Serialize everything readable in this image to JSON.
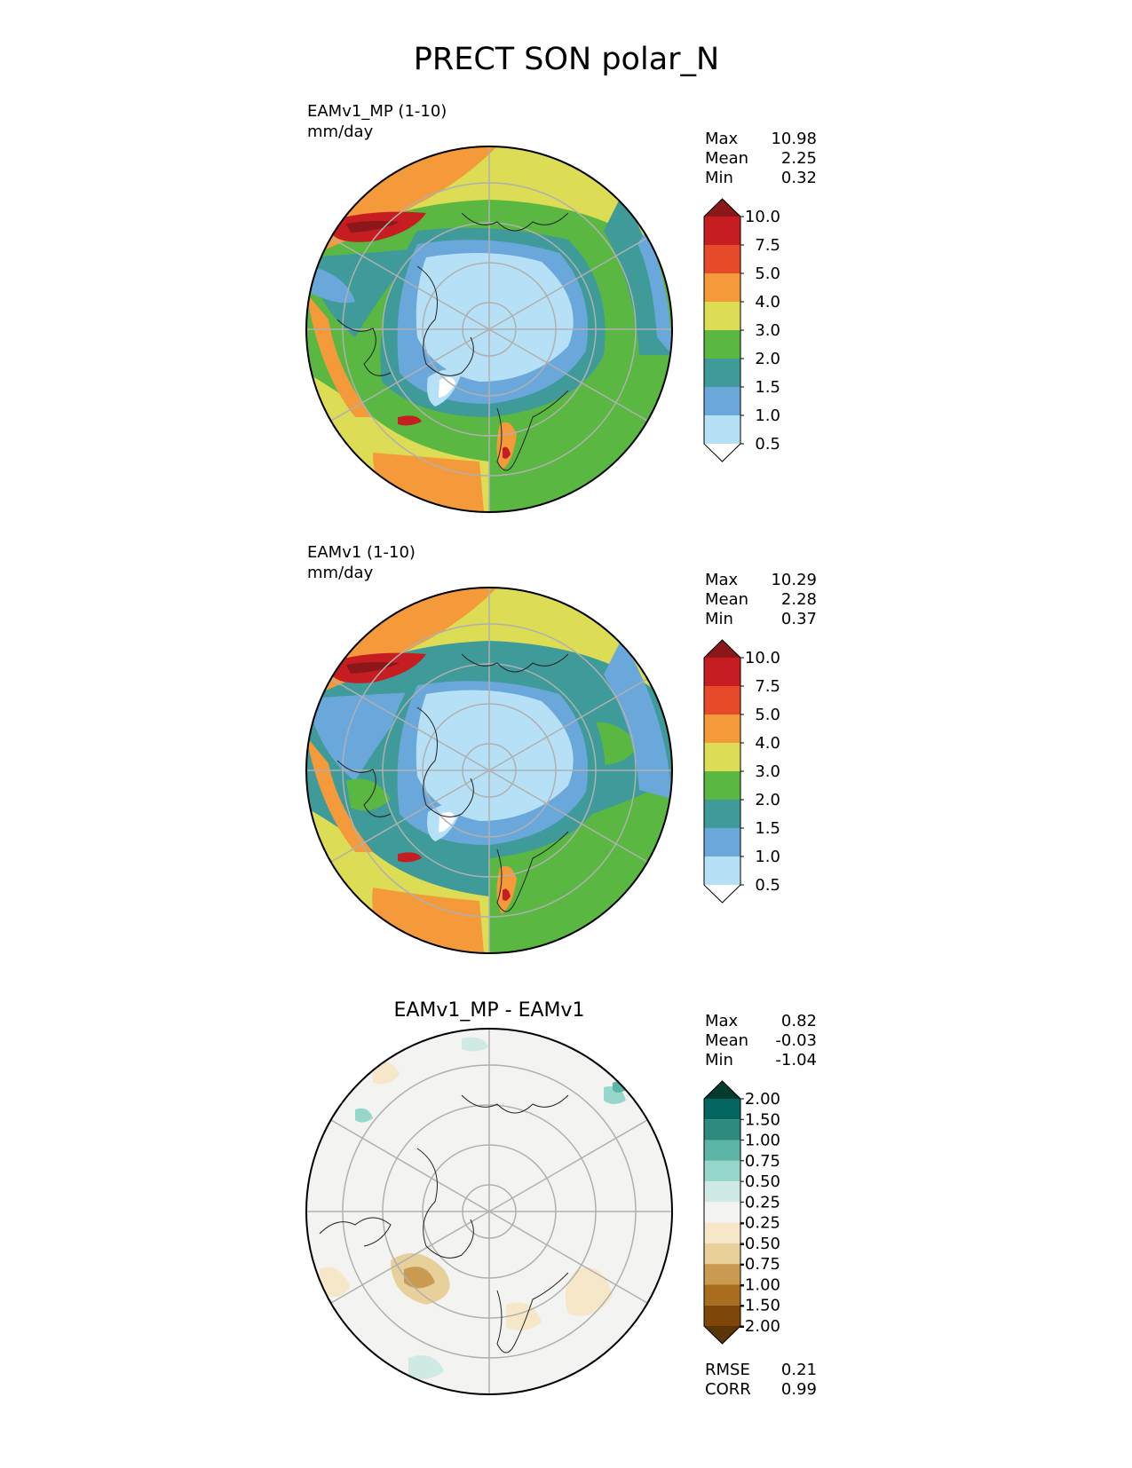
{
  "title": "PRECT SON polar_N",
  "panels": [
    {
      "id": "test",
      "label_line1": "EAMv1_MP (1-10)",
      "label_line2": "mm/day",
      "stats": [
        {
          "name": "Max",
          "value": "10.98"
        },
        {
          "name": "Mean",
          "value": "2.25"
        },
        {
          "name": "Min",
          "value": "0.32"
        }
      ],
      "colorbar": {
        "ticks": [
          "10.0",
          "7.5",
          "5.0",
          "4.0",
          "3.0",
          "2.0",
          "1.5",
          "1.0",
          "0.5"
        ],
        "colors_top_to_bottom": [
          "#8c1719",
          "#c61d22",
          "#e64a2a",
          "#f49a3a",
          "#dcdc55",
          "#5ab842",
          "#3f9a9a",
          "#6aa8dc",
          "#b6e0f5",
          "#ffffff"
        ]
      }
    },
    {
      "id": "ref",
      "label_line1": "EAMv1 (1-10)",
      "label_line2": "mm/day",
      "stats": [
        {
          "name": "Max",
          "value": "10.29"
        },
        {
          "name": "Mean",
          "value": "2.28"
        },
        {
          "name": "Min",
          "value": "0.37"
        }
      ],
      "colorbar": {
        "ticks": [
          "10.0",
          "7.5",
          "5.0",
          "4.0",
          "3.0",
          "2.0",
          "1.5",
          "1.0",
          "0.5"
        ],
        "colors_top_to_bottom": [
          "#8c1719",
          "#c61d22",
          "#e64a2a",
          "#f49a3a",
          "#dcdc55",
          "#5ab842",
          "#3f9a9a",
          "#6aa8dc",
          "#b6e0f5",
          "#ffffff"
        ]
      }
    },
    {
      "id": "diff",
      "label_center": "EAMv1_MP - EAMv1",
      "stats": [
        {
          "name": "Max",
          "value": "0.82"
        },
        {
          "name": "Mean",
          "value": "-0.03"
        },
        {
          "name": "Min",
          "value": "-1.04"
        }
      ],
      "colorbar": {
        "ticks": [
          "2.00",
          "1.50",
          "1.00",
          "0.75",
          "0.50",
          "0.25",
          "-0.25",
          "-0.50",
          "-0.75",
          "-1.00",
          "-1.50",
          "-2.00"
        ],
        "colors_top_to_bottom": [
          "#053b2f",
          "#02665e",
          "#2e8a7e",
          "#5db5a8",
          "#97d6cb",
          "#cfeae5",
          "#f3f3f1",
          "#f5e7c8",
          "#e8d09a",
          "#c99a50",
          "#a86e1e",
          "#7e4709",
          "#5a3506"
        ]
      },
      "extra_stats": [
        {
          "name": "RMSE",
          "value": "0.21"
        },
        {
          "name": "CORR",
          "value": "0.99"
        }
      ]
    }
  ]
}
